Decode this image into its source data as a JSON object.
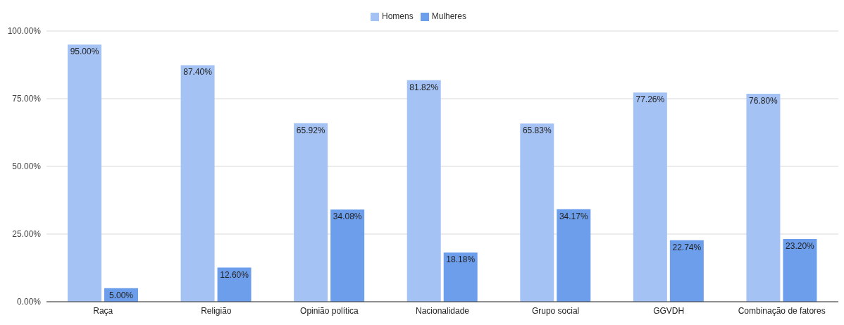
{
  "chart_data": {
    "type": "bar",
    "categories": [
      "Raça",
      "Religião",
      "Opinião política",
      "Nacionalidade",
      "Grupo social",
      "GGVDH",
      "Combinação de fatores"
    ],
    "series": [
      {
        "name": "Homens",
        "color": "#a4c2f4",
        "values": [
          95.0,
          87.4,
          65.92,
          81.82,
          65.83,
          77.26,
          76.8
        ],
        "value_labels": [
          "95.00%",
          "87.40%",
          "65.92%",
          "81.82%",
          "65.83%",
          "77.26%",
          "76.80%"
        ]
      },
      {
        "name": "Mulheres",
        "color": "#6d9eeb",
        "values": [
          5.0,
          12.6,
          34.08,
          18.18,
          34.17,
          22.74,
          23.2
        ],
        "value_labels": [
          "5.00%",
          "12.60%",
          "34.08%",
          "18.18%",
          "34.17%",
          "22.74%",
          "23.20%"
        ]
      }
    ],
    "ylim": [
      0,
      100
    ],
    "yticks": [
      {
        "value": 0,
        "label": "0.00%"
      },
      {
        "value": 25,
        "label": "25.00%"
      },
      {
        "value": 50,
        "label": "50.00%"
      },
      {
        "value": 75,
        "label": "75.00%"
      },
      {
        "value": 100,
        "label": "100.00%"
      }
    ],
    "grid": "y",
    "legend": "top"
  }
}
